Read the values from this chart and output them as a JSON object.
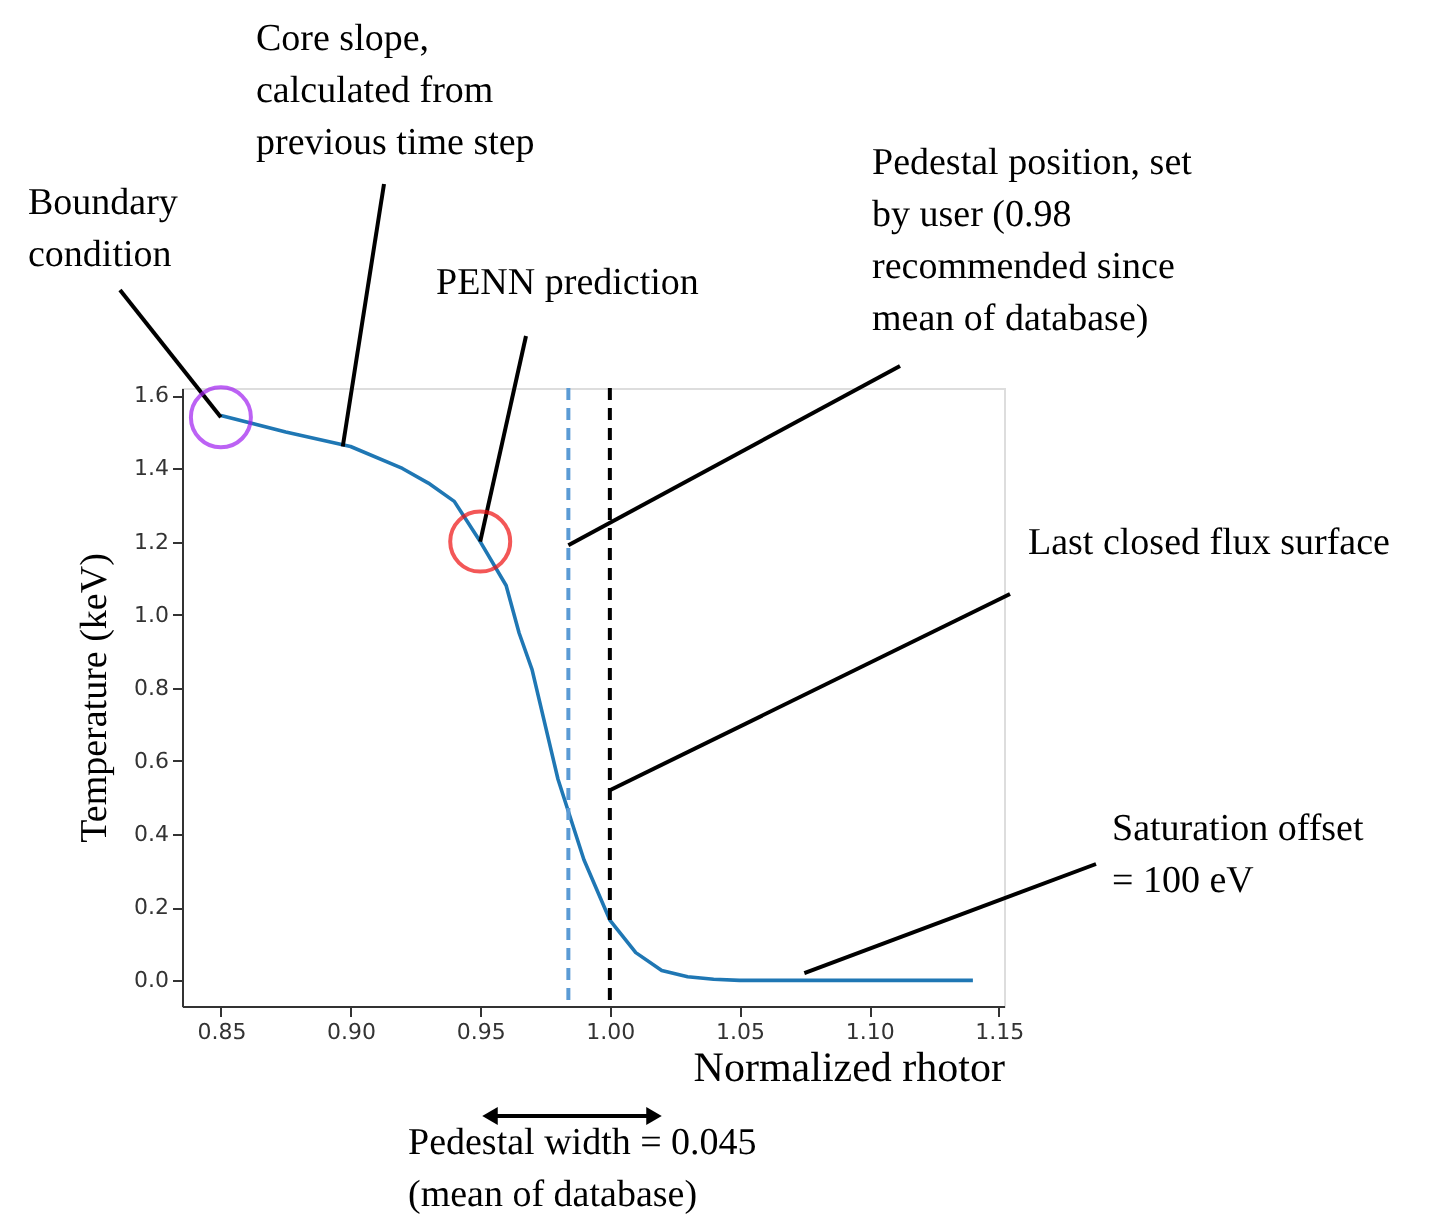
{
  "chart_data": {
    "type": "line",
    "xlabel": "Normalized rhotor",
    "ylabel": "Temperature (keV)",
    "x": [
      0.85,
      0.875,
      0.9,
      0.92,
      0.93,
      0.94,
      0.95,
      0.96,
      0.965,
      0.97,
      0.98,
      0.99,
      1.0,
      1.01,
      1.02,
      1.03,
      1.04,
      1.05,
      1.14
    ],
    "series": [
      {
        "color": "#1f77b4",
        "values": [
          1.545,
          1.5,
          1.46,
          1.4,
          1.36,
          1.31,
          1.2,
          1.08,
          0.95,
          0.85,
          0.55,
          0.33,
          0.165,
          0.076,
          0.027,
          0.01,
          0.003,
          0.0,
          0.0
        ]
      }
    ],
    "xlim": [
      0.835,
      1.152
    ],
    "ylim": [
      -0.07,
      1.62
    ],
    "xticks": [
      {
        "value": 0.85,
        "label": "0.85"
      },
      {
        "value": 0.9,
        "label": "0.90"
      },
      {
        "value": 0.95,
        "label": "0.95"
      },
      {
        "value": 1.0,
        "label": "1.00"
      },
      {
        "value": 1.05,
        "label": "1.05"
      },
      {
        "value": 1.1,
        "label": "1.10"
      },
      {
        "value": 1.15,
        "label": "1.15"
      }
    ],
    "yticks": [
      {
        "value": 0.0,
        "label": "0.0"
      },
      {
        "value": 0.2,
        "label": "0.2"
      },
      {
        "value": 0.4,
        "label": "0.4"
      },
      {
        "value": 0.6,
        "label": "0.6"
      },
      {
        "value": 0.8,
        "label": "0.8"
      },
      {
        "value": 1.0,
        "label": "1.0"
      },
      {
        "value": 1.2,
        "label": "1.2"
      },
      {
        "value": 1.4,
        "label": "1.4"
      },
      {
        "value": 1.6,
        "label": "1.6"
      }
    ],
    "ref_lines": [
      {
        "axis": "x",
        "value": 0.984,
        "color": "#5b9bd5",
        "line_style": "dashed"
      },
      {
        "axis": "x",
        "value": 1.0,
        "color": "#000000",
        "line_style": "dashed"
      }
    ],
    "annotations": [
      {
        "text": "Boundary\ncondition",
        "x": 0.85,
        "y": 1.54
      },
      {
        "text": "Core slope,\ncalculated from\nprevious time step",
        "x": 0.897,
        "y": 1.46
      },
      {
        "text": "PENN prediction",
        "x": 0.95,
        "y": 1.2
      },
      {
        "text": "Pedestal position, set\nby user (0.98\nrecommended since\nmean of database)",
        "x": 0.984,
        "y": 1.19
      },
      {
        "text": "Last closed flux surface",
        "x": 1.0,
        "y": 0.52
      },
      {
        "text": "Saturation offset\n= 100 eV",
        "x": 1.075,
        "y": 0.02
      },
      "Pedestal width = 0.045\n(mean of database)"
    ],
    "grid": false,
    "marker": "none",
    "line_style": "solid"
  }
}
